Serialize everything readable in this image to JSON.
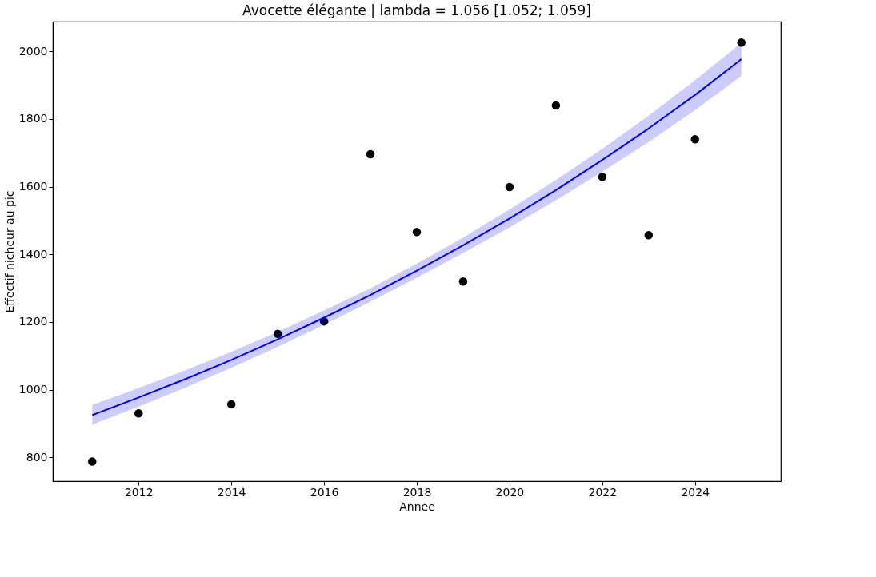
{
  "chart_data": {
    "type": "scatter",
    "title": "Avocette élégante | lambda = 1.056 [1.052; 1.059]",
    "xlabel": "Annee",
    "ylabel": "Effectif nicheur au pic",
    "xlim": [
      2010.15,
      2025.85
    ],
    "ylim": [
      730,
      2088
    ],
    "xticks": [
      2012,
      2014,
      2016,
      2018,
      2020,
      2022,
      2024
    ],
    "yticks": [
      800,
      1000,
      1200,
      1400,
      1600,
      1800,
      2000
    ],
    "grid": false,
    "legend": false,
    "series": [
      {
        "color": "#000000",
        "marker": "circle",
        "x": [
          2011,
          2012,
          2014,
          2015,
          2016,
          2017,
          2018,
          2019,
          2020,
          2021,
          2022,
          2023,
          2024,
          2025
        ],
        "values": [
          788,
          930,
          957,
          1165,
          1202,
          1696,
          1466,
          1320,
          1599,
          1840,
          1629,
          1457,
          1740,
          2026
        ]
      },
      {
        "type": "line",
        "color": "#0000ff",
        "x": [
          2011,
          2012,
          2013,
          2014,
          2015,
          2016,
          2017,
          2018,
          2019,
          2020,
          2021,
          2022,
          2023,
          2024,
          2025
        ],
        "values": [
          925,
          977,
          1031,
          1088,
          1149,
          1213,
          1280,
          1352,
          1427,
          1506,
          1590,
          1679,
          1772,
          1871,
          1977
        ],
        "lower": [
          897,
          950,
          1006,
          1065,
          1127,
          1192,
          1260,
          1331,
          1404,
          1480,
          1560,
          1644,
          1732,
          1826,
          1928
        ],
        "upper": [
          955,
          1005,
          1057,
          1112,
          1171,
          1234,
          1300,
          1373,
          1450,
          1533,
          1620,
          1712,
          1810,
          1915,
          2025
        ]
      }
    ]
  }
}
